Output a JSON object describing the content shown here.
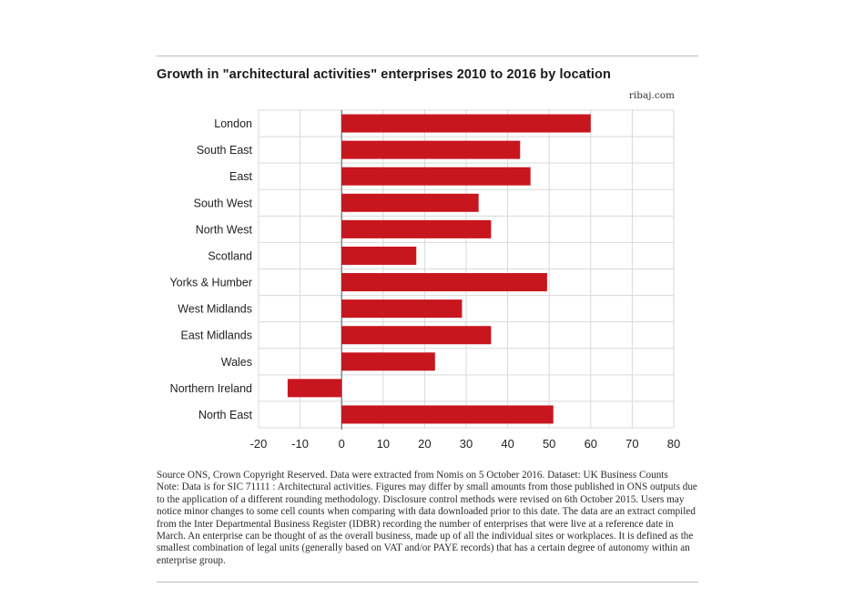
{
  "header": {
    "title": "Growth in \"architectural activities\" enterprises 2010 to 2016 by location",
    "brand": "ribaj.com"
  },
  "footnote": {
    "source": "Source ONS, Crown Copyright Reserved. Data were extracted from Nomis on 5 October 2016. Dataset: UK Business Counts",
    "note": "Note: Data is for SIC 71111 : Architectural activities. Figures may differ by small amounts from those published in ONS outputs due to the application of a different rounding methodology. Disclosure control methods were revised on 6th October 2015. Users may notice minor changes to some cell counts when comparing with data downloaded prior to this date. The data are an extract compiled from the Inter Departmental Business Register (IDBR) recording the number of enterprises that were live at a reference date in March. An enterprise can be thought of as the overall business, made up of all the individual sites or workplaces. It is defined as the smallest combination of legal units (generally based on VAT and/or PAYE records) that has a certain degree of autonomy within an enterprise group."
  },
  "colors": {
    "bar": "#c8161e",
    "grid": "#d9d9d9",
    "rule": "#bdbdbd"
  },
  "chart_data": {
    "type": "bar",
    "orientation": "horizontal",
    "title": "Growth in \"architectural activities\" enterprises 2010 to 2016 by location",
    "xlabel": "",
    "ylabel": "",
    "categories": [
      "London",
      "South East",
      "East",
      "South West",
      "North West",
      "Scotland",
      "Yorks & Humber",
      "West Midlands",
      "East Midlands",
      "Wales",
      "Northern Ireland",
      "North East"
    ],
    "values": [
      60,
      43,
      45.5,
      33,
      36,
      18,
      49.5,
      29,
      36,
      22.5,
      -13,
      51
    ],
    "xlim": [
      -20,
      80
    ],
    "ticks": [
      "-20",
      "-10",
      "0",
      "10",
      "20",
      "30",
      "40",
      "50",
      "60",
      "70",
      "80"
    ],
    "grid": true,
    "legend": "none"
  }
}
